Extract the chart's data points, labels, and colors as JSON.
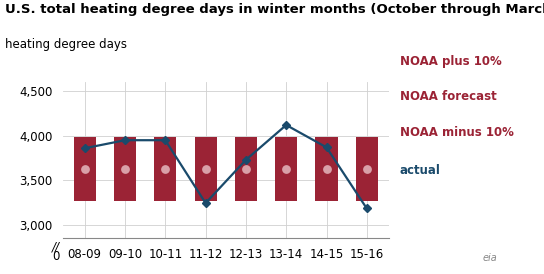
{
  "title": "U.S. total heating degree days in winter months (October through March)",
  "ylabel": "heating degree days",
  "categories": [
    "08-09",
    "09-10",
    "10-11",
    "11-12",
    "12-13",
    "13-14",
    "14-15",
    "15-16"
  ],
  "noaa_forecast": [
    3630,
    3630,
    3630,
    3630,
    3630,
    3630,
    3630,
    3630
  ],
  "noaa_plus10": [
    3990,
    3990,
    3990,
    3990,
    3990,
    3990,
    3990,
    3990
  ],
  "noaa_minus10": [
    3270,
    3270,
    3270,
    3270,
    3270,
    3270,
    3270,
    3270
  ],
  "actual": [
    3860,
    3950,
    3950,
    3245,
    3730,
    4120,
    3870,
    3185
  ],
  "bar_color": "#9b2335",
  "line_color": "#1a4a6b",
  "forecast_dot_color": "#d9a0a8",
  "ylim_min": 2850,
  "ylim_max": 4600,
  "yticks": [
    3000,
    3500,
    4000,
    4500
  ],
  "ytick_labels": [
    "3,000",
    "3,500",
    "4,000",
    "4,500"
  ],
  "legend_labels": [
    "NOAA plus 10%",
    "NOAA forecast",
    "NOAA minus 10%",
    "actual"
  ],
  "legend_colors": [
    "#9b2335",
    "#9b2335",
    "#9b2335",
    "#1a4a6b"
  ],
  "bg_color": "#ffffff",
  "grid_color": "#d0d0d0",
  "title_fontsize": 9.5,
  "ylabel_fontsize": 8.5,
  "tick_fontsize": 8.5,
  "legend_fontsize": 8.5
}
